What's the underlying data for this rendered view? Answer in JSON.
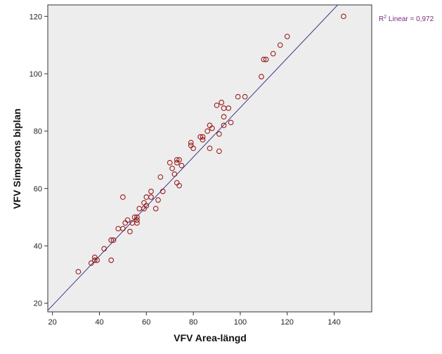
{
  "chart_data": {
    "type": "scatter",
    "xlabel": "VFV Area-längd",
    "ylabel": "VFV Simpsons biplan",
    "xlim": [
      18,
      156
    ],
    "ylim": [
      17,
      124
    ],
    "x_ticks": [
      20,
      40,
      60,
      80,
      100,
      120,
      140
    ],
    "y_ticks": [
      20,
      40,
      60,
      80,
      100,
      120
    ],
    "grid": false,
    "fit_line": {
      "label_prefix": "R",
      "label_sup": "2",
      "label_suffix": " Linear = 0,972",
      "x_start": 18,
      "y_start": 17.5,
      "x_end": 141.5,
      "y_end": 124
    },
    "points": [
      [
        31,
        31
      ],
      [
        36.5,
        34
      ],
      [
        38,
        35
      ],
      [
        39,
        35
      ],
      [
        38,
        36
      ],
      [
        42,
        39
      ],
      [
        45,
        42
      ],
      [
        46,
        42
      ],
      [
        45,
        35
      ],
      [
        48,
        46
      ],
      [
        50,
        46
      ],
      [
        51,
        48
      ],
      [
        50,
        57
      ],
      [
        52,
        49
      ],
      [
        53,
        45
      ],
      [
        54,
        48
      ],
      [
        55,
        50
      ],
      [
        56,
        48
      ],
      [
        56,
        49
      ],
      [
        56,
        50
      ],
      [
        57,
        53
      ],
      [
        59,
        53
      ],
      [
        59,
        55
      ],
      [
        60,
        54
      ],
      [
        60,
        57
      ],
      [
        62,
        57
      ],
      [
        62,
        59
      ],
      [
        64,
        53
      ],
      [
        65,
        56
      ],
      [
        66,
        64
      ],
      [
        67,
        59
      ],
      [
        70,
        69
      ],
      [
        71,
        67
      ],
      [
        72,
        65
      ],
      [
        73,
        62
      ],
      [
        73,
        69
      ],
      [
        73,
        70
      ],
      [
        74,
        61
      ],
      [
        74,
        70
      ],
      [
        75,
        68
      ],
      [
        79,
        75
      ],
      [
        79,
        76
      ],
      [
        80,
        74
      ],
      [
        83,
        78
      ],
      [
        84,
        77
      ],
      [
        84,
        78
      ],
      [
        86,
        80
      ],
      [
        87,
        74
      ],
      [
        87,
        82
      ],
      [
        88,
        81
      ],
      [
        90,
        89
      ],
      [
        91,
        73
      ],
      [
        91,
        79
      ],
      [
        92,
        90
      ],
      [
        93,
        82
      ],
      [
        93,
        85
      ],
      [
        93,
        88
      ],
      [
        95,
        88
      ],
      [
        96,
        83
      ],
      [
        99,
        92
      ],
      [
        102,
        92
      ],
      [
        109,
        99
      ],
      [
        110,
        105
      ],
      [
        111,
        105
      ],
      [
        114,
        107
      ],
      [
        117,
        110
      ],
      [
        120,
        113
      ],
      [
        144,
        120
      ]
    ]
  },
  "colors": {
    "plot_background": "#ededed",
    "marker": "#9b1c1c",
    "fit_line": "#3b3b8c",
    "fit_label": "#7a2a7a"
  }
}
